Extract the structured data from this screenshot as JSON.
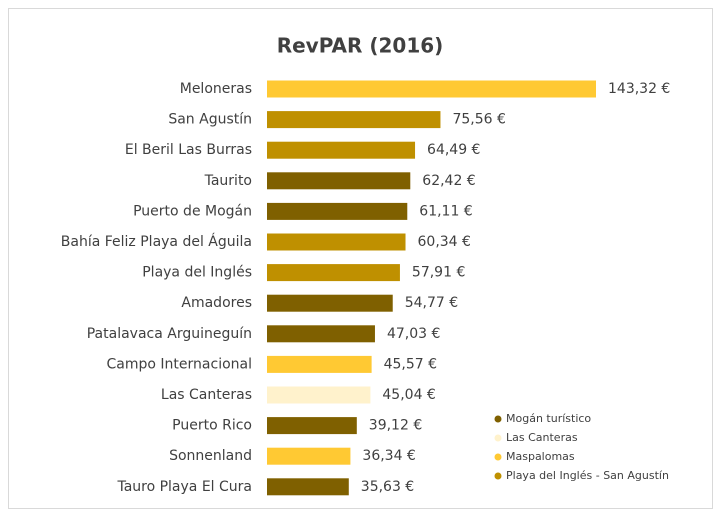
{
  "chart_data": {
    "type": "barh",
    "title": "RevPAR (2016)",
    "categories": [
      "Meloneras",
      "San Agustín",
      "El Beril Las Burras",
      "Taurito",
      "Puerto de Mogán",
      "Bahía Feliz Playa del Águila",
      "Playa del Inglés",
      "Amadores",
      "Patalavaca Arguineguín",
      "Campo Internacional",
      "Las Canteras",
      "Puerto Rico",
      "Sonnenland",
      "Tauro Playa El Cura"
    ],
    "values": [
      143.32,
      75.56,
      64.49,
      62.42,
      61.11,
      60.34,
      57.91,
      54.77,
      47.03,
      45.57,
      45.04,
      39.12,
      36.34,
      35.63
    ],
    "value_labels": [
      "143,32 €",
      "75,56 €",
      "64,49 €",
      "62,42 €",
      "61,11 €",
      "60,34 €",
      "57,91 €",
      "54,77 €",
      "47,03 €",
      "45,57 €",
      "45,04 €",
      "39,12 €",
      "36,34 €",
      "35,63 €"
    ],
    "colors": [
      "#ffc933",
      "#bf9000",
      "#bf9000",
      "#7f6000",
      "#7f6000",
      "#bf9000",
      "#bf9000",
      "#7f6000",
      "#7f6000",
      "#ffc933",
      "#fff2cc",
      "#7f6000",
      "#ffc933",
      "#7f6000"
    ],
    "legend": [
      {
        "name": "Mogán turístico",
        "color": "#7f6000"
      },
      {
        "name": "Las Canteras",
        "color": "#fff2cc"
      },
      {
        "name": "Maspalomas",
        "color": "#ffc933"
      },
      {
        "name": "Playa del Inglés - San Agustín",
        "color": "#bf9000"
      }
    ],
    "legend_position": "lower right"
  }
}
